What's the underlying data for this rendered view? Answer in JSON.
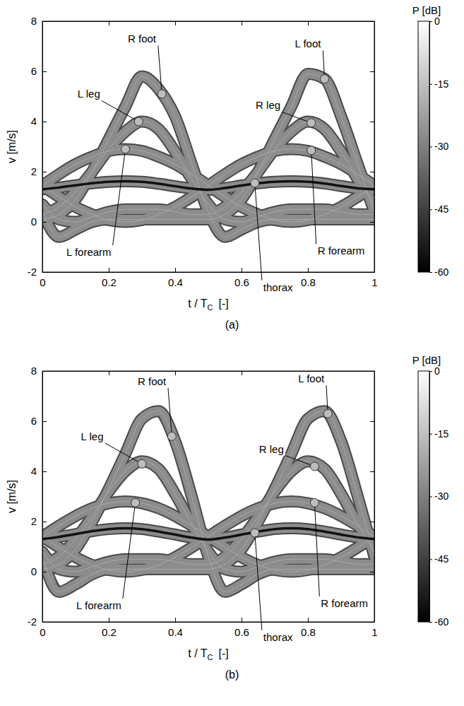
{
  "chart_data": [
    {
      "type": "line",
      "title": "(a)",
      "xlabel": {
        "text": "t / T",
        "subscript": "C",
        "unit": "[-]"
      },
      "ylabel": "v  [m/s]",
      "xlim": [
        0,
        1
      ],
      "ylim": [
        -2,
        8
      ],
      "xticks": [
        0,
        0.2,
        0.4,
        0.6,
        0.8,
        1
      ],
      "yticks": [
        -2,
        0,
        2,
        4,
        6,
        8
      ],
      "x": [
        0,
        0.05,
        0.1,
        0.15,
        0.2,
        0.25,
        0.3,
        0.35,
        0.4,
        0.45,
        0.5,
        0.55,
        0.6,
        0.65,
        0.7,
        0.75,
        0.8,
        0.85,
        0.9,
        0.95,
        1
      ],
      "series": [
        {
          "name": "R foot",
          "color": "#a8a8a8",
          "line_style": "solid",
          "values": [
            0.1,
            0.3,
            0.9,
            2.0,
            3.3,
            4.6,
            5.8,
            5.3,
            4.2,
            2.3,
            0.4,
            -0.6,
            -0.3,
            0,
            0.1,
            0.1,
            0.1,
            0.1,
            0.1,
            0.1,
            0.1
          ]
        },
        {
          "name": "L foot",
          "color": "#a8a8a8",
          "line_style": "solid",
          "values": [
            0.4,
            -0.6,
            -0.3,
            0,
            0.1,
            0.1,
            0.1,
            0.1,
            0.1,
            0.1,
            0.1,
            0.3,
            0.9,
            2.0,
            3.3,
            4.6,
            5.9,
            5.7,
            4.2,
            2.3,
            0.4
          ]
        },
        {
          "name": "L leg",
          "color": "#a8a8a8",
          "line_style": "solid",
          "values": [
            0.3,
            0.6,
            1.2,
            2.0,
            2.9,
            3.6,
            4.0,
            3.7,
            2.8,
            1.7,
            0.7,
            0.1,
            0,
            0.2,
            0.4,
            0.5,
            0.5,
            0.5,
            0.4,
            0.3,
            0.3
          ]
        },
        {
          "name": "R leg",
          "color": "#a8a8a8",
          "line_style": "solid",
          "values": [
            0.7,
            0.1,
            0,
            0.2,
            0.4,
            0.5,
            0.5,
            0.5,
            0.4,
            0.3,
            0.3,
            0.6,
            1.2,
            2.0,
            2.9,
            3.6,
            4.0,
            3.7,
            2.8,
            1.7,
            0.7
          ]
        },
        {
          "name": "L forearm",
          "color": "#a8a8a8",
          "line_style": "solid",
          "values": [
            1.45,
            1.9,
            2.3,
            2.6,
            2.83,
            2.9,
            2.83,
            2.6,
            2.3,
            1.9,
            1.45,
            1.0,
            0.6,
            0.3,
            0.07,
            0,
            0.07,
            0.3,
            0.6,
            1.0,
            1.45
          ]
        },
        {
          "name": "R forearm",
          "color": "#a8a8a8",
          "line_style": "solid",
          "values": [
            1.45,
            1.0,
            0.6,
            0.3,
            0.07,
            0,
            0.07,
            0.3,
            0.6,
            1.0,
            1.45,
            1.9,
            2.3,
            2.6,
            2.83,
            2.9,
            2.83,
            2.6,
            2.3,
            1.9,
            1.45
          ]
        },
        {
          "name": "thorax",
          "color": "#111111",
          "line_style": "bold",
          "values": [
            1.3,
            1.37,
            1.46,
            1.54,
            1.6,
            1.62,
            1.6,
            1.52,
            1.42,
            1.33,
            1.28,
            1.35,
            1.45,
            1.54,
            1.6,
            1.62,
            1.6,
            1.53,
            1.43,
            1.34,
            1.3
          ]
        }
      ],
      "annotations": [
        {
          "text": "R foot",
          "x": 0.36,
          "y": 5.1
        },
        {
          "text": "L leg",
          "x": 0.29,
          "y": 4.0
        },
        {
          "text": "L forearm",
          "x": 0.25,
          "y": 2.9
        },
        {
          "text": "L foot",
          "x": 0.85,
          "y": 5.7
        },
        {
          "text": "R leg",
          "x": 0.81,
          "y": 3.95
        },
        {
          "text": "R forearm",
          "x": 0.81,
          "y": 2.85
        },
        {
          "text": "thorax",
          "x": 0.64,
          "y": 1.55
        }
      ],
      "colorbar": {
        "title": "P [dB]",
        "range": [
          -60,
          0
        ],
        "ticks": [
          0,
          -15,
          -30,
          -45,
          -60
        ]
      }
    },
    {
      "type": "line",
      "title": "(b)",
      "xlabel": {
        "text": "t / T",
        "subscript": "C",
        "unit": "[-]"
      },
      "ylabel": "v  [m/s]",
      "xlim": [
        0,
        1
      ],
      "ylim": [
        -2,
        8
      ],
      "xticks": [
        0,
        0.2,
        0.4,
        0.6,
        0.8,
        1
      ],
      "yticks": [
        -2,
        0,
        2,
        4,
        6,
        8
      ],
      "x": [
        0,
        0.05,
        0.1,
        0.15,
        0.2,
        0.25,
        0.3,
        0.35,
        0.4,
        0.45,
        0.5,
        0.55,
        0.6,
        0.65,
        0.7,
        0.75,
        0.8,
        0.85,
        0.9,
        0.95,
        1
      ],
      "series": [
        {
          "name": "R foot",
          "color": "#a8a8a8",
          "line_style": "solid",
          "values": [
            0.1,
            0.3,
            0.9,
            2.0,
            3.3,
            4.7,
            6.1,
            6.4,
            5.2,
            3.0,
            0.6,
            -0.8,
            -0.5,
            -0.1,
            0.1,
            0.1,
            0.1,
            0.1,
            0.1,
            0.1,
            0.1
          ]
        },
        {
          "name": "L foot",
          "color": "#a8a8a8",
          "line_style": "solid",
          "values": [
            0.6,
            -0.8,
            -0.5,
            -0.1,
            0.1,
            0.1,
            0.1,
            0.1,
            0.1,
            0.1,
            0.1,
            0.3,
            0.9,
            2.0,
            3.3,
            4.7,
            6.1,
            6.4,
            5.2,
            3.0,
            0.6
          ]
        },
        {
          "name": "L leg",
          "color": "#a8a8a8",
          "line_style": "solid",
          "values": [
            0.3,
            0.6,
            1.3,
            2.2,
            3.2,
            4.0,
            4.4,
            4.1,
            3.1,
            1.9,
            0.8,
            0.1,
            0,
            0.2,
            0.4,
            0.5,
            0.5,
            0.5,
            0.4,
            0.3,
            0.3
          ]
        },
        {
          "name": "R leg",
          "color": "#a8a8a8",
          "line_style": "solid",
          "values": [
            0.8,
            0.1,
            0,
            0.2,
            0.4,
            0.5,
            0.5,
            0.5,
            0.4,
            0.3,
            0.3,
            0.6,
            1.3,
            2.2,
            3.2,
            4.0,
            4.4,
            4.1,
            3.1,
            1.9,
            0.8
          ]
        },
        {
          "name": "L forearm",
          "color": "#a8a8a8",
          "line_style": "solid",
          "values": [
            1.4,
            1.83,
            2.22,
            2.53,
            2.73,
            2.8,
            2.73,
            2.53,
            2.22,
            1.83,
            1.4,
            0.97,
            0.58,
            0.27,
            0.07,
            0,
            0.07,
            0.27,
            0.58,
            0.97,
            1.4
          ]
        },
        {
          "name": "R forearm",
          "color": "#a8a8a8",
          "line_style": "solid",
          "values": [
            1.4,
            0.97,
            0.58,
            0.27,
            0.07,
            0,
            0.07,
            0.27,
            0.58,
            0.97,
            1.4,
            1.83,
            2.22,
            2.53,
            2.73,
            2.8,
            2.73,
            2.53,
            2.22,
            1.83,
            1.4
          ]
        },
        {
          "name": "thorax",
          "color": "#111111",
          "line_style": "bold",
          "values": [
            1.3,
            1.39,
            1.5,
            1.62,
            1.7,
            1.73,
            1.7,
            1.6,
            1.48,
            1.36,
            1.28,
            1.36,
            1.48,
            1.6,
            1.7,
            1.73,
            1.7,
            1.6,
            1.48,
            1.37,
            1.3
          ]
        }
      ],
      "annotations": [
        {
          "text": "R foot",
          "x": 0.39,
          "y": 5.4
        },
        {
          "text": "L leg",
          "x": 0.3,
          "y": 4.3
        },
        {
          "text": "L forearm",
          "x": 0.28,
          "y": 2.75
        },
        {
          "text": "L foot",
          "x": 0.86,
          "y": 6.3
        },
        {
          "text": "R leg",
          "x": 0.82,
          "y": 4.2
        },
        {
          "text": "R forearm",
          "x": 0.82,
          "y": 2.75
        },
        {
          "text": "thorax",
          "x": 0.64,
          "y": 1.55
        }
      ],
      "colorbar": {
        "title": "P [dB]",
        "range": [
          -60,
          0
        ],
        "ticks": [
          0,
          -15,
          -30,
          -45,
          -60
        ]
      }
    }
  ]
}
